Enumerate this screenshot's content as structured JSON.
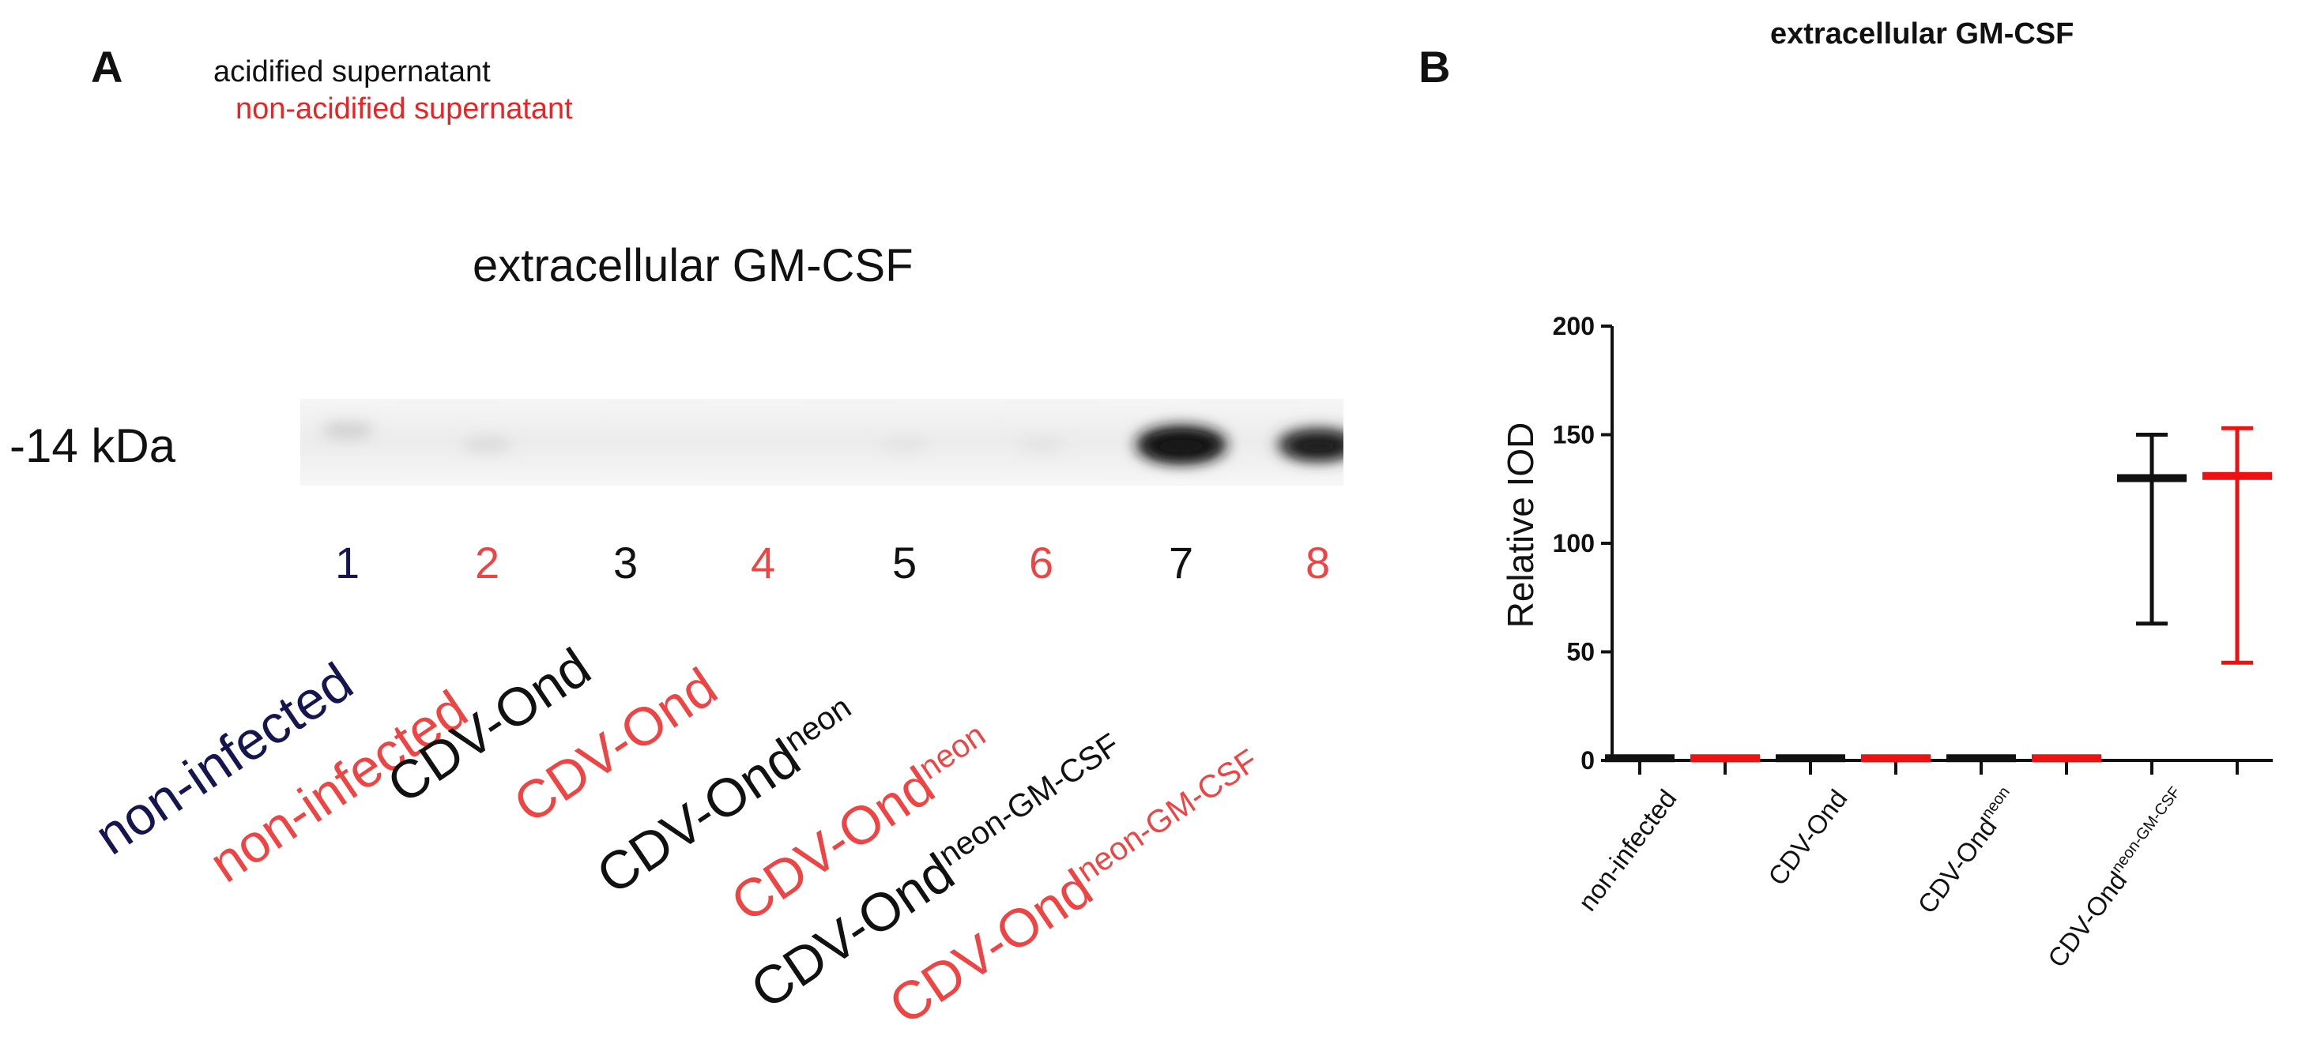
{
  "panel_a": {
    "letter": "A",
    "legend": [
      {
        "text": "acidified supernatant",
        "color": "#111111"
      },
      {
        "text": "non-acidified supernatant",
        "color": "#ee2222"
      }
    ],
    "blot_title": "extracellular GM-CSF",
    "marker": "-14 kDa",
    "lanes": [
      {
        "number": "1",
        "label": "non-infected",
        "sup": "",
        "color": "#151550",
        "band": 0.12
      },
      {
        "number": "2",
        "label": "non-infected",
        "sup": "",
        "color": "#ee4444",
        "band": 0.06
      },
      {
        "number": "3",
        "label": "CDV-Ond",
        "sup": "",
        "color": "#111111",
        "band": 0.0
      },
      {
        "number": "4",
        "label": "CDV-Ond",
        "sup": "",
        "color": "#ee4444",
        "band": 0.0
      },
      {
        "number": "5",
        "label": "CDV-Ond",
        "sup": "neon",
        "color": "#111111",
        "band": 0.02
      },
      {
        "number": "6",
        "label": "CDV-Ond",
        "sup": "neon",
        "color": "#ee4444",
        "band": 0.02
      },
      {
        "number": "7",
        "label": "CDV-Ond",
        "sup": "neon-GM-CSF",
        "color": "#111111",
        "band": 1.0
      },
      {
        "number": "8",
        "label": "CDV-Ond",
        "sup": "neon-GM-CSF",
        "color": "#ee4444",
        "band": 0.8
      }
    ]
  },
  "panel_b": {
    "letter": "B",
    "title": "extracellular GM-CSF"
  },
  "chart_data": {
    "type": "scatter",
    "title": "extracellular GM-CSF",
    "xlabel": "",
    "ylabel": "Relative IOD",
    "ylim": [
      0,
      200
    ],
    "yticks": [
      0,
      50,
      100,
      150,
      200
    ],
    "categories": [
      {
        "label": "non-infected",
        "sup": ""
      },
      {
        "label": "CDV-Ond",
        "sup": ""
      },
      {
        "label": "CDV-Ond",
        "sup": "neon"
      },
      {
        "label": "CDV-Ond",
        "sup": "neon-GM-CSF"
      }
    ],
    "series": [
      {
        "color": "#111111",
        "mean": [
          1,
          1,
          1,
          130
        ],
        "low": [
          1,
          1,
          1,
          63
        ],
        "high": [
          1,
          1,
          1,
          150
        ]
      },
      {
        "color": "#ee1111",
        "mean": [
          1,
          1,
          1,
          131
        ],
        "low": [
          1,
          1,
          1,
          45
        ],
        "high": [
          1,
          1,
          1,
          153
        ]
      }
    ],
    "grid": false,
    "legend": "none"
  }
}
